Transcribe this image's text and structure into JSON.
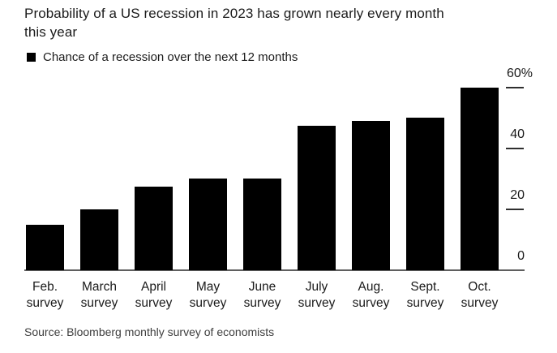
{
  "header": {
    "title_lines": [
      "Probability of a US recession in 2023 has grown nearly every month",
      "this year"
    ]
  },
  "legend": {
    "marker_color": "#000000",
    "label": "Chance of a recession over the next 12 months"
  },
  "chart_data": {
    "type": "bar",
    "title": "Probability of a US recession in 2023 has grown nearly every month this year",
    "legend": [
      "Chance of a recession over the next 12 months"
    ],
    "legend_position": "top-left",
    "categories": [
      "Feb. survey",
      "March survey",
      "April survey",
      "May survey",
      "June survey",
      "July survey",
      "Aug. survey",
      "Sept. survey",
      "Oct. survey"
    ],
    "values": [
      15,
      20,
      27.5,
      30,
      30,
      47.5,
      49,
      50,
      60
    ],
    "unit": "%",
    "xlabel": "",
    "ylabel": "",
    "ylim": [
      0,
      60
    ],
    "yticks": [
      0,
      20,
      40,
      60
    ],
    "ytick_labels": [
      "0",
      "20",
      "40",
      "60%"
    ],
    "grid": false,
    "bar_color": "#000000",
    "text_color": "#1a1a1a",
    "source": "Source: Bloomberg monthly survey of economists"
  }
}
